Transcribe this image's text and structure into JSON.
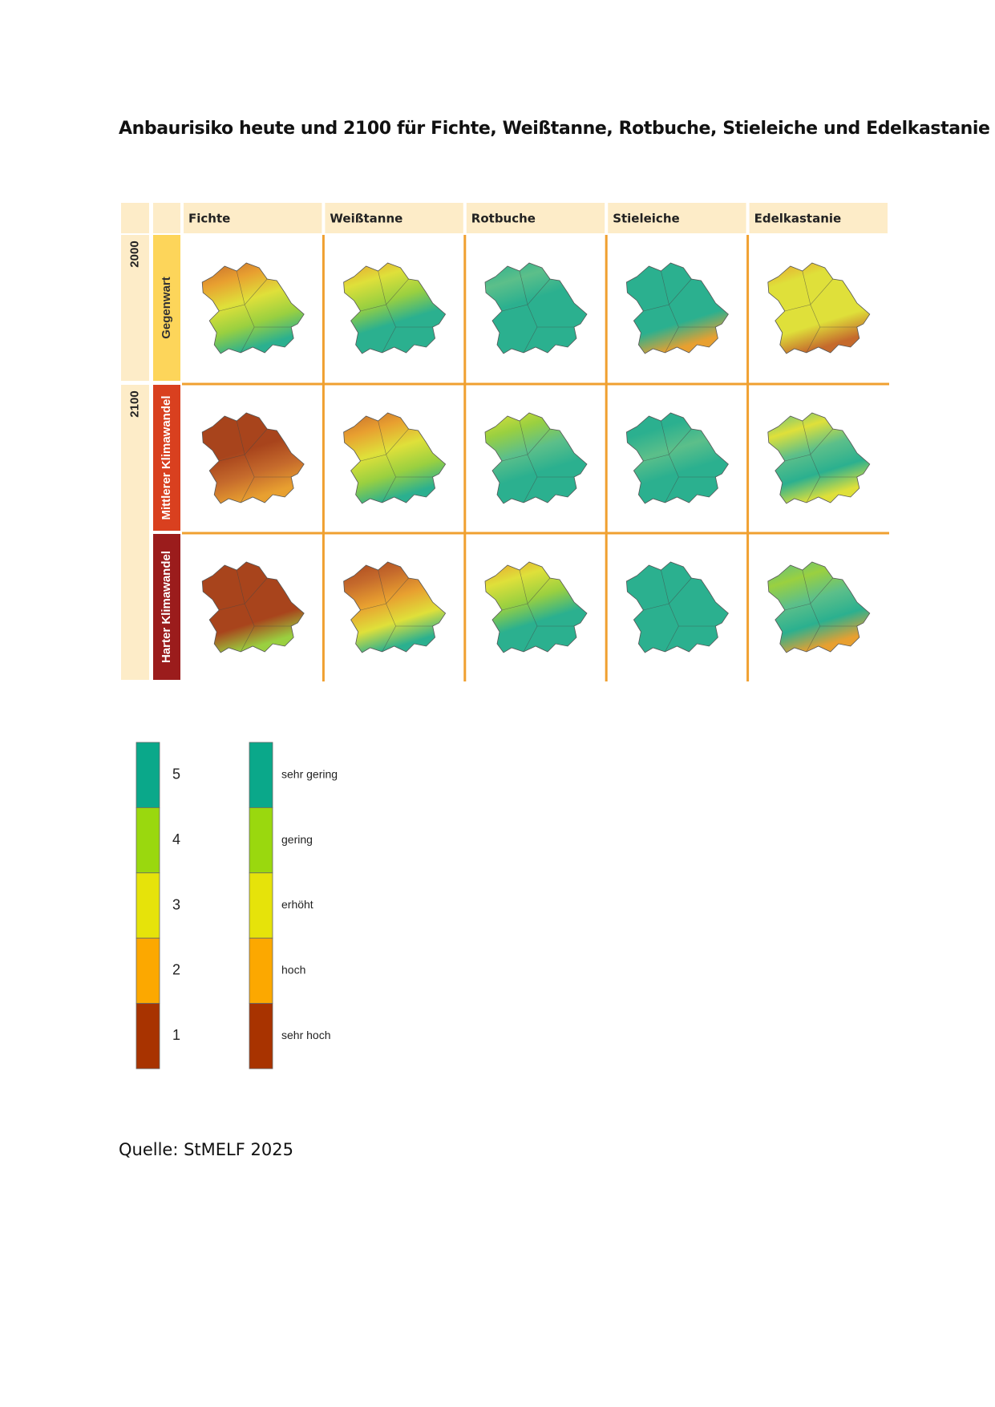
{
  "title": "Anbaurisiko heute und 2100 für Fichte, Weißtanne, Rotbuche, Stieleiche und Edelkastanie",
  "table": {
    "columns": [
      "Fichte",
      "Weißtanne",
      "Rotbuche",
      "Stieleiche",
      "Edelkastanie"
    ],
    "years": [
      "2000",
      "2100"
    ],
    "scenarios": [
      "Gegenwart",
      "Mittlerer Klimawandel",
      "Harter Klimawandel"
    ]
  },
  "legend": {
    "levels": [
      {
        "value": 5,
        "label": "sehr gering",
        "color": "#0aa88a"
      },
      {
        "value": 4,
        "label": "gering",
        "color": "#9ad80e"
      },
      {
        "value": 3,
        "label": "erhöht",
        "color": "#e6e30a"
      },
      {
        "value": 2,
        "label": "hoch",
        "color": "#fca800"
      },
      {
        "value": 1,
        "label": "sehr hoch",
        "color": "#a83300"
      }
    ]
  },
  "source": "Quelle: StMELF 2025"
}
